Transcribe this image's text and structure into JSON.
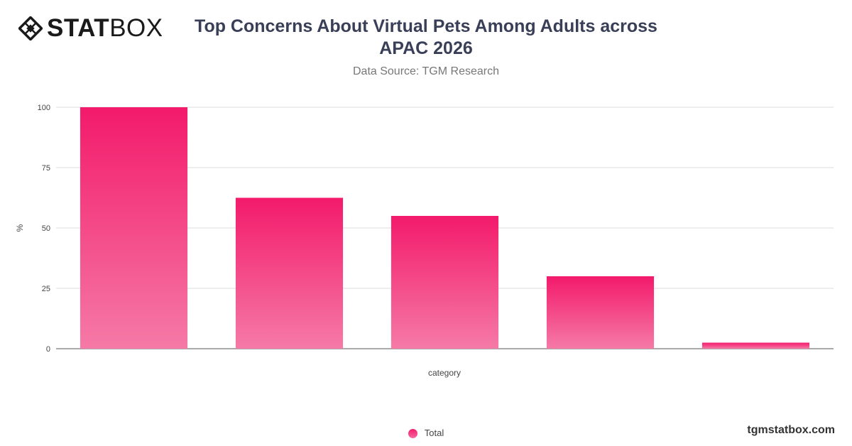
{
  "brand": {
    "logo_part1": "STAT",
    "logo_part2": "BOX",
    "logo_icon": "diamond-grid-icon",
    "footer": "tgmstatbox.com"
  },
  "header": {
    "title": "Top Concerns About Virtual Pets Among Adults across APAC 2026",
    "subtitle": "Data Source: TGM Research"
  },
  "chart_data": {
    "type": "bar",
    "categories": [
      "",
      "",
      "",
      "",
      ""
    ],
    "series": [
      {
        "name": "Total",
        "values": [
          100,
          62.5,
          55,
          30,
          2.5
        ],
        "color_top": "#f31a6b",
        "color_bottom": "#f57aa6"
      }
    ],
    "xlabel": "category",
    "ylabel": "%",
    "ylim": [
      0,
      100
    ],
    "yticks": [
      0,
      25,
      50,
      75,
      100
    ],
    "grid": true,
    "legend": "bottom-center"
  }
}
